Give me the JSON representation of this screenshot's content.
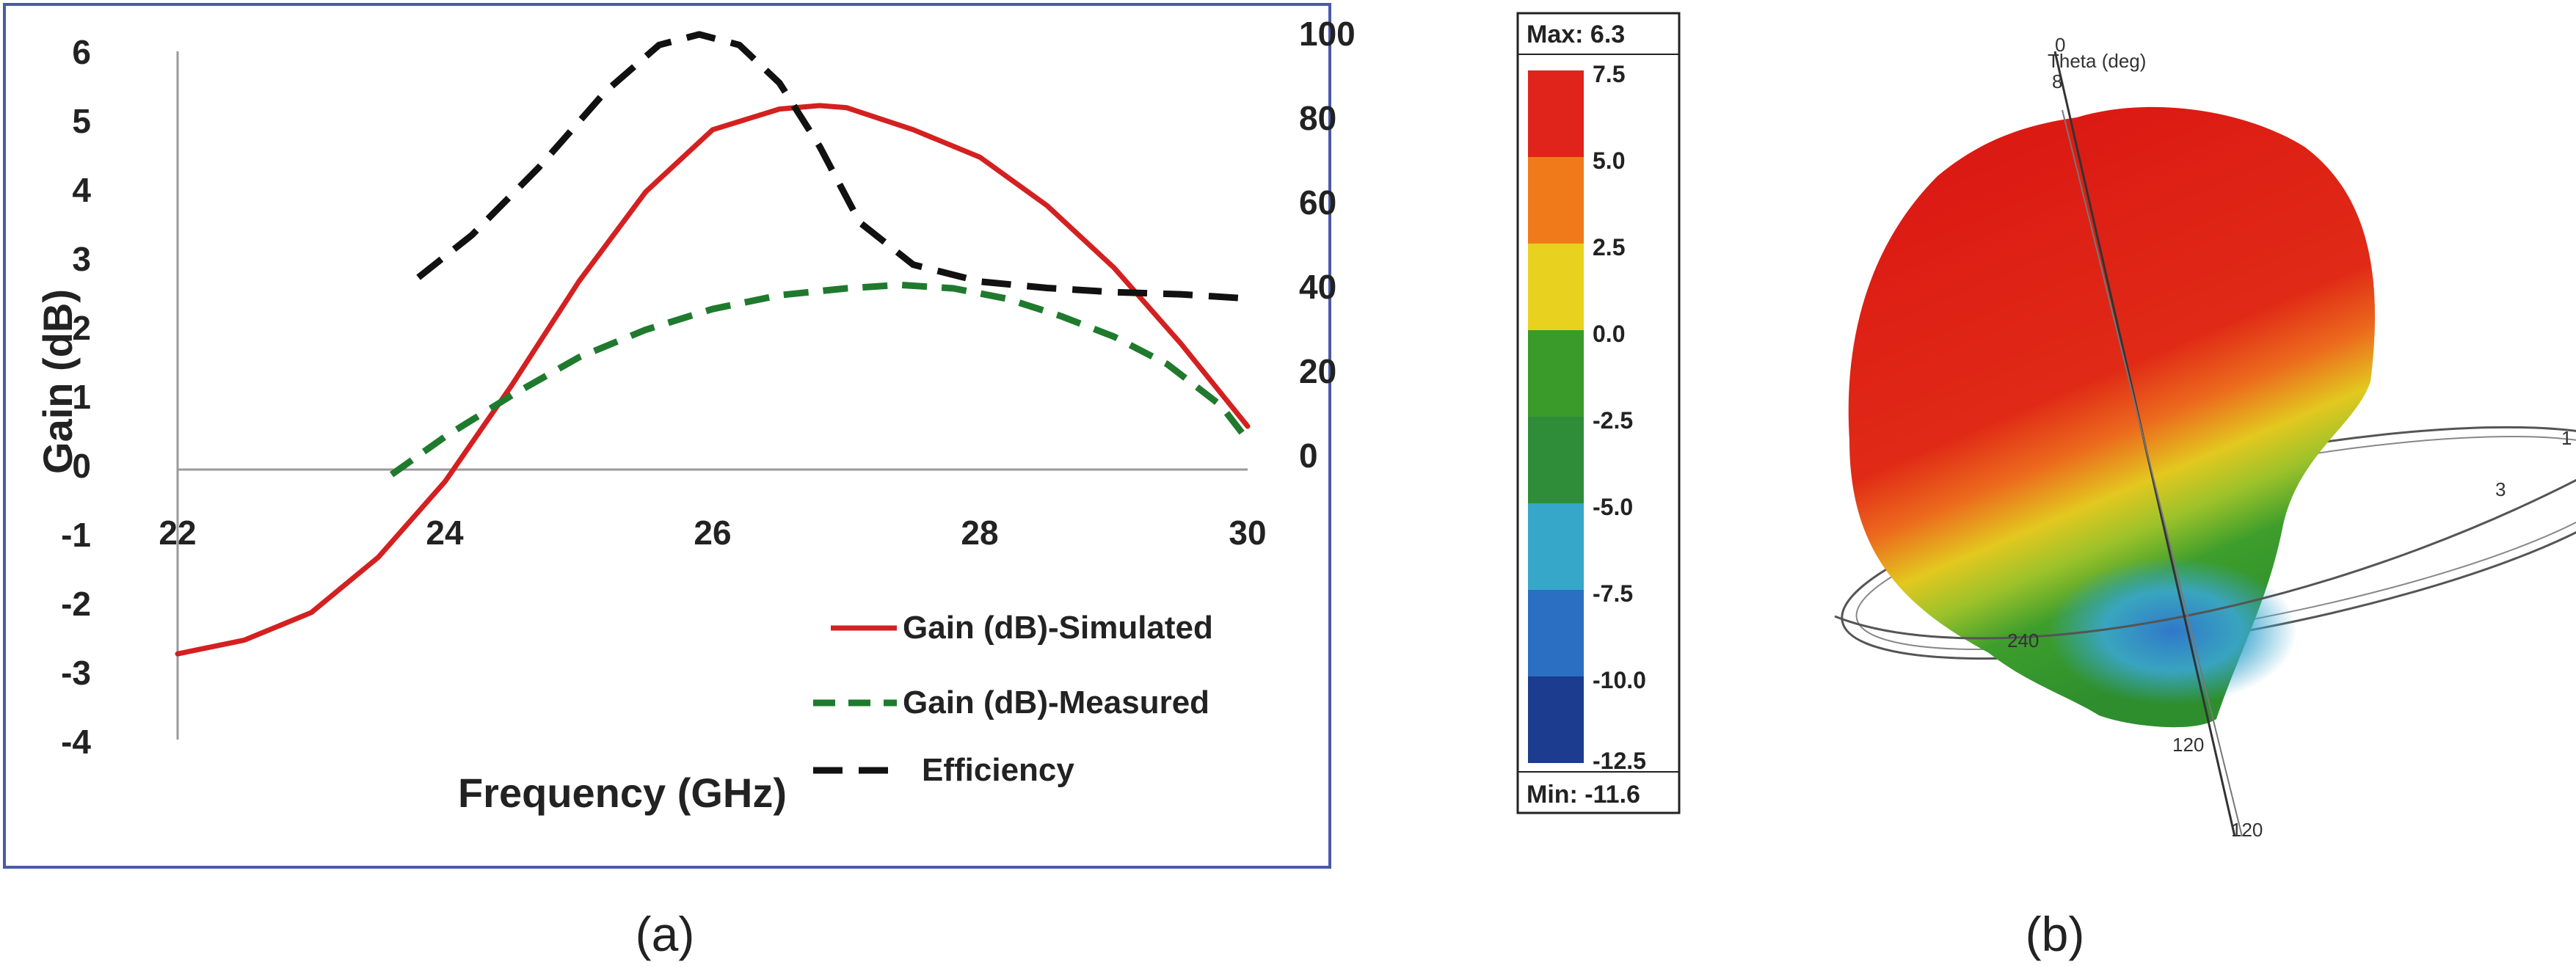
{
  "chart_data": [
    {
      "panel": "(a)",
      "type": "line",
      "xlabel": "Frequency (GHz)",
      "ylabel": "Gain (dB)",
      "xlim": [
        22,
        30
      ],
      "ylim": [
        -4,
        6
      ],
      "y2lim": [
        0,
        100
      ],
      "xticks": [
        "22",
        "24",
        "26",
        "28",
        "30"
      ],
      "yticks": [
        "6",
        "5",
        "4",
        "3",
        "2",
        "1",
        "0",
        "-1",
        "-2",
        "-3",
        "-4"
      ],
      "y2ticks": [
        "100",
        "80",
        "60",
        "40",
        "20",
        "0"
      ],
      "legend_position": "bottom-right",
      "series": [
        {
          "name": "Gain (dB)-Simulated",
          "axis": "left",
          "color": "#d42020",
          "style": "solid",
          "x": [
            22,
            22.5,
            23,
            23.5,
            24,
            24.5,
            25,
            25.5,
            26,
            26.5,
            26.8,
            27,
            27.5,
            28,
            28.5,
            29,
            29.5,
            30
          ],
          "values": [
            -2.8,
            -2.6,
            -2.2,
            -1.4,
            -0.3,
            1.1,
            2.6,
            3.9,
            4.8,
            5.1,
            5.15,
            5.12,
            4.8,
            4.4,
            3.7,
            2.8,
            1.7,
            0.5
          ]
        },
        {
          "name": "Gain (dB)-Measured",
          "axis": "left",
          "color": "#1f7a2e",
          "style": "dashed",
          "x": [
            23.6,
            24,
            24.5,
            25,
            25.5,
            26,
            26.5,
            27,
            27.4,
            27.8,
            28.2,
            28.6,
            29,
            29.4,
            29.8,
            30
          ],
          "values": [
            -0.2,
            0.35,
            0.95,
            1.5,
            1.9,
            2.2,
            2.4,
            2.5,
            2.55,
            2.5,
            2.35,
            2.1,
            1.8,
            1.4,
            0.8,
            0.3
          ]
        },
        {
          "name": "Efficiency",
          "axis": "right",
          "color": "#111111",
          "style": "dashed",
          "x": [
            23.8,
            24.2,
            24.7,
            25.2,
            25.6,
            25.9,
            26.2,
            26.5,
            26.8,
            27.1,
            27.5,
            28,
            28.5,
            29,
            29.5,
            30
          ],
          "values": [
            42,
            52,
            68,
            86,
            97,
            99.5,
            97,
            88,
            73,
            55,
            45,
            41,
            39.5,
            38.5,
            38,
            37
          ]
        }
      ]
    }
  ],
  "panel_b": {
    "colorbar": {
      "max_label": "Max: 6.3",
      "min_label": "Min: -11.6",
      "ticks": [
        "7.5",
        "5.0",
        "2.5",
        "0.0",
        "-2.5",
        "-5.0",
        "-7.5",
        "-10.0",
        "-12.5"
      ],
      "colors": [
        "#e0241c",
        "#f07a1a",
        "#e9d21f",
        "#3a9a2a",
        "#2f8d3a",
        "#36a7c9",
        "#2a6fc2",
        "#1b3c8f"
      ]
    },
    "pattern_labels": {
      "theta_title": "Theta (deg)",
      "top_angle": "0",
      "top_angle2": "8",
      "left_angle": "240",
      "bottom_angle": "120",
      "bottom_angle2": "120",
      "right_end": "1",
      "right_tick": "3"
    }
  },
  "captions": {
    "a": "(a)",
    "b": "(b)"
  }
}
